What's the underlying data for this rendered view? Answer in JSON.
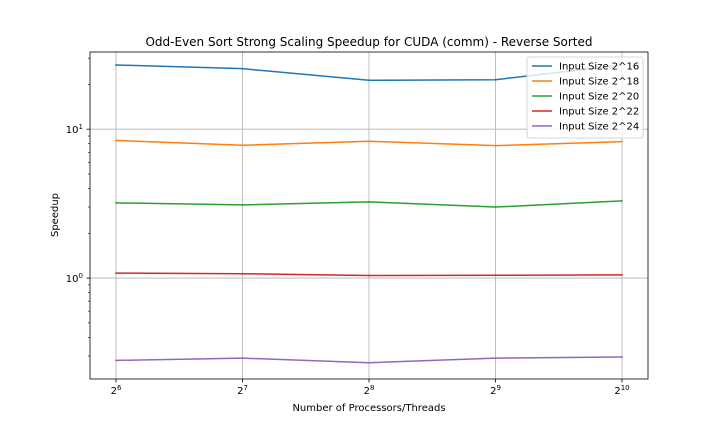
{
  "chart_data": {
    "type": "line",
    "title": "Odd-Even Sort Strong Scaling Speedup for CUDA (comm) - Reverse Sorted",
    "xlabel": "Number of Processors/Threads",
    "ylabel": "Speedup",
    "x_scale": "log2",
    "y_scale": "log10",
    "x": [
      64,
      128,
      256,
      512,
      1024
    ],
    "x_tick_labels": [
      {
        "base": "2",
        "exp": "6"
      },
      {
        "base": "2",
        "exp": "7"
      },
      {
        "base": "2",
        "exp": "8"
      },
      {
        "base": "2",
        "exp": "9"
      },
      {
        "base": "2",
        "exp": "10"
      }
    ],
    "y_tick_labels": [
      {
        "value": 1,
        "base": "10",
        "exp": "0"
      },
      {
        "value": 10,
        "base": "10",
        "exp": "1"
      }
    ],
    "ylim": [
      0.21,
      33
    ],
    "grid": true,
    "legend_position": "top-right",
    "series": [
      {
        "name": "Input Size 2^16",
        "color": "#1f77b4",
        "values": [
          27.0,
          25.5,
          21.3,
          21.5,
          27.0
        ]
      },
      {
        "name": "Input Size 2^18",
        "color": "#ff7f0e",
        "values": [
          8.4,
          7.8,
          8.3,
          7.75,
          8.25
        ]
      },
      {
        "name": "Input Size 2^20",
        "color": "#2ca02c",
        "values": [
          3.2,
          3.1,
          3.25,
          3.0,
          3.3
        ]
      },
      {
        "name": "Input Size 2^22",
        "color": "#d62728",
        "values": [
          1.08,
          1.07,
          1.04,
          1.045,
          1.05
        ]
      },
      {
        "name": "Input Size 2^24",
        "color": "#9467bd",
        "values": [
          0.28,
          0.29,
          0.27,
          0.29,
          0.295
        ]
      }
    ]
  }
}
